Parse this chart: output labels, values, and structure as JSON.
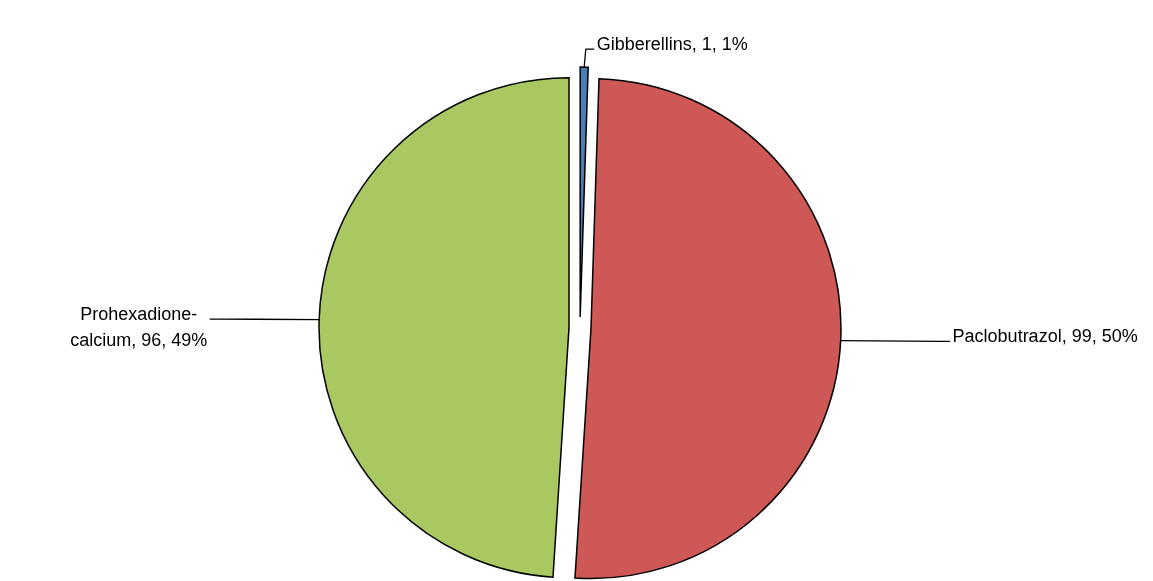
{
  "chart_data": {
    "type": "pie",
    "categories": [
      "Gibberellins",
      "Paclobutrazol",
      "Prohexadione-calcium"
    ],
    "values": [
      1,
      99,
      96
    ],
    "colors": [
      "#4a7ebb",
      "#cd5855",
      "#a9c862"
    ],
    "value_labels": [
      "1, 1%",
      "99, 50%",
      "96, 49%"
    ]
  }
}
